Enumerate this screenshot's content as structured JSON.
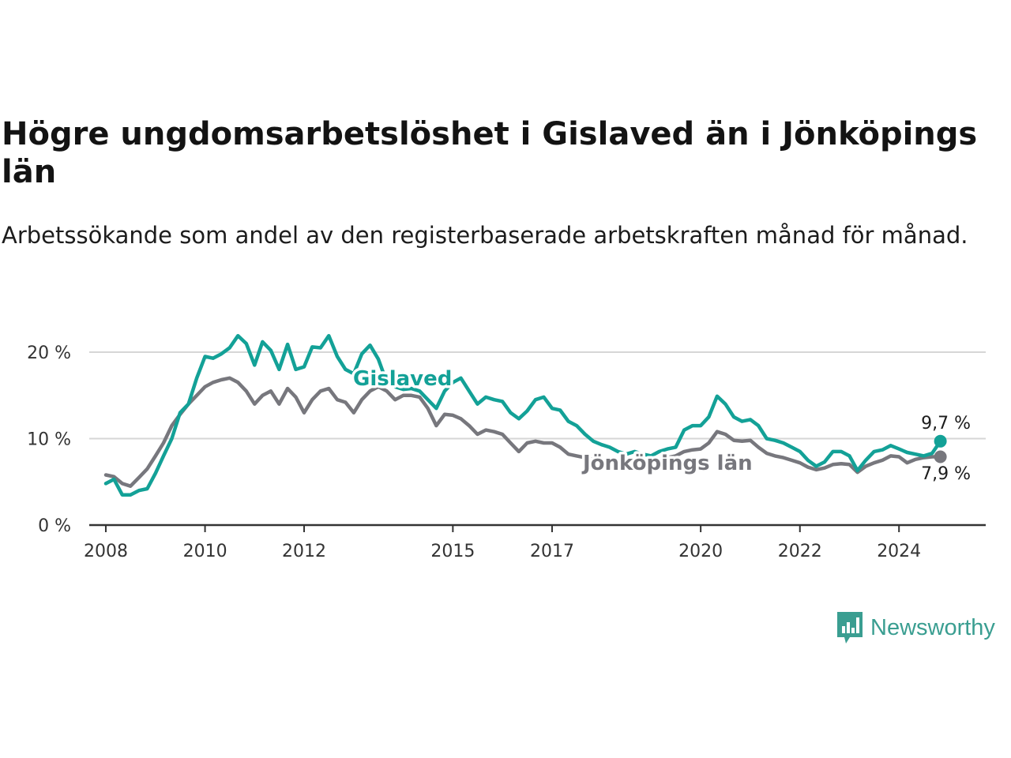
{
  "title": "Högre ungdomsarbetslöshet i Gislaved än i Jönköpings län",
  "subtitle": "Arbetssökande som andel av den registerbaserade arbetskraften månad för månad.",
  "brand": {
    "name": "Newsworthy",
    "color": "#3a9e91"
  },
  "colors": {
    "gislaved": "#13a197",
    "jonkoping": "#77777d",
    "grid": "#d6d6d6",
    "axis": "#333333"
  },
  "chart_data": {
    "type": "line",
    "title": "Högre ungdomsarbetslöshet i Gislaved än i Jönköpings län",
    "subtitle": "Arbetssökande som andel av den registerbaserade arbetskraften månad för månad.",
    "xlabel": "",
    "ylabel": "",
    "ylim": [
      0,
      25
    ],
    "xlim": [
      "2007-09-01",
      "2025-10-01"
    ],
    "yticks": [
      0,
      10,
      20
    ],
    "ytick_labels": [
      "0 %",
      "10 %",
      "20 %"
    ],
    "xticks": [
      "2008",
      "2010",
      "2012",
      "2015",
      "2017",
      "2020",
      "2022",
      "2024"
    ],
    "grid": true,
    "legend": "inline labels",
    "series": [
      {
        "name": "Gislaved",
        "color": "#13a197",
        "label": "Gislaved",
        "end_label": "9,7 %",
        "points": [
          [
            "2008-01",
            4.8
          ],
          [
            "2008-03",
            5.3
          ],
          [
            "2008-05",
            3.5
          ],
          [
            "2008-07",
            3.5
          ],
          [
            "2008-09",
            4.0
          ],
          [
            "2008-11",
            4.2
          ],
          [
            "2009-01",
            6.0
          ],
          [
            "2009-03",
            8.0
          ],
          [
            "2009-05",
            10.0
          ],
          [
            "2009-07",
            13.0
          ],
          [
            "2009-09",
            14.0
          ],
          [
            "2009-11",
            17.0
          ],
          [
            "2010-01",
            19.5
          ],
          [
            "2010-03",
            19.3
          ],
          [
            "2010-05",
            19.8
          ],
          [
            "2010-07",
            20.5
          ],
          [
            "2010-09",
            21.9
          ],
          [
            "2010-11",
            21.0
          ],
          [
            "2011-01",
            18.5
          ],
          [
            "2011-03",
            21.2
          ],
          [
            "2011-05",
            20.2
          ],
          [
            "2011-07",
            18.0
          ],
          [
            "2011-09",
            20.9
          ],
          [
            "2011-11",
            18.0
          ],
          [
            "2012-01",
            18.3
          ],
          [
            "2012-03",
            20.6
          ],
          [
            "2012-05",
            20.5
          ],
          [
            "2012-07",
            21.9
          ],
          [
            "2012-09",
            19.5
          ],
          [
            "2012-11",
            18.0
          ],
          [
            "2013-01",
            17.5
          ],
          [
            "2013-03",
            19.8
          ],
          [
            "2013-05",
            20.8
          ],
          [
            "2013-07",
            19.2
          ],
          [
            "2013-09",
            16.5
          ],
          [
            "2013-11",
            16.0
          ],
          [
            "2014-01",
            15.7
          ],
          [
            "2014-03",
            15.8
          ],
          [
            "2014-05",
            15.5
          ],
          [
            "2014-07",
            14.5
          ],
          [
            "2014-09",
            13.5
          ],
          [
            "2014-11",
            15.5
          ],
          [
            "2015-01",
            16.5
          ],
          [
            "2015-03",
            17.0
          ],
          [
            "2015-05",
            15.5
          ],
          [
            "2015-07",
            14.0
          ],
          [
            "2015-09",
            14.8
          ],
          [
            "2015-11",
            14.5
          ],
          [
            "2016-01",
            14.3
          ],
          [
            "2016-03",
            13.0
          ],
          [
            "2016-05",
            12.3
          ],
          [
            "2016-07",
            13.2
          ],
          [
            "2016-09",
            14.5
          ],
          [
            "2016-11",
            14.8
          ],
          [
            "2017-01",
            13.5
          ],
          [
            "2017-03",
            13.3
          ],
          [
            "2017-05",
            12.0
          ],
          [
            "2017-07",
            11.5
          ],
          [
            "2017-09",
            10.5
          ],
          [
            "2017-11",
            9.7
          ],
          [
            "2018-01",
            9.3
          ],
          [
            "2018-03",
            9.0
          ],
          [
            "2018-05",
            8.5
          ],
          [
            "2018-07",
            8.2
          ],
          [
            "2018-09",
            8.5
          ],
          [
            "2018-11",
            8.2
          ],
          [
            "2019-01",
            8.0
          ],
          [
            "2019-03",
            8.5
          ],
          [
            "2019-05",
            8.8
          ],
          [
            "2019-07",
            9.0
          ],
          [
            "2019-09",
            11.0
          ],
          [
            "2019-11",
            11.5
          ],
          [
            "2020-01",
            11.5
          ],
          [
            "2020-03",
            12.5
          ],
          [
            "2020-05",
            14.9
          ],
          [
            "2020-07",
            14.0
          ],
          [
            "2020-09",
            12.5
          ],
          [
            "2020-11",
            12.0
          ],
          [
            "2021-01",
            12.2
          ],
          [
            "2021-03",
            11.5
          ],
          [
            "2021-05",
            10.0
          ],
          [
            "2021-07",
            9.8
          ],
          [
            "2021-09",
            9.5
          ],
          [
            "2021-11",
            9.0
          ],
          [
            "2022-01",
            8.5
          ],
          [
            "2022-03",
            7.5
          ],
          [
            "2022-05",
            6.8
          ],
          [
            "2022-07",
            7.3
          ],
          [
            "2022-09",
            8.5
          ],
          [
            "2022-11",
            8.5
          ],
          [
            "2023-01",
            8.0
          ],
          [
            "2023-03",
            6.3
          ],
          [
            "2023-05",
            7.5
          ],
          [
            "2023-07",
            8.5
          ],
          [
            "2023-09",
            8.7
          ],
          [
            "2023-11",
            9.2
          ],
          [
            "2024-01",
            8.8
          ],
          [
            "2024-03",
            8.4
          ],
          [
            "2024-05",
            8.2
          ],
          [
            "2024-07",
            8.0
          ],
          [
            "2024-09",
            8.3
          ],
          [
            "2024-11",
            9.7
          ]
        ]
      },
      {
        "name": "Jönköpings län",
        "color": "#77777d",
        "label": "Jönköpings län",
        "end_label": "7,9 %",
        "points": [
          [
            "2008-01",
            5.8
          ],
          [
            "2008-03",
            5.6
          ],
          [
            "2008-05",
            4.8
          ],
          [
            "2008-07",
            4.5
          ],
          [
            "2008-09",
            5.5
          ],
          [
            "2008-11",
            6.5
          ],
          [
            "2009-01",
            8.0
          ],
          [
            "2009-03",
            9.5
          ],
          [
            "2009-05",
            11.5
          ],
          [
            "2009-07",
            12.8
          ],
          [
            "2009-09",
            14.0
          ],
          [
            "2009-11",
            15.0
          ],
          [
            "2010-01",
            16.0
          ],
          [
            "2010-03",
            16.5
          ],
          [
            "2010-05",
            16.8
          ],
          [
            "2010-07",
            17.0
          ],
          [
            "2010-09",
            16.5
          ],
          [
            "2010-11",
            15.5
          ],
          [
            "2011-01",
            14.0
          ],
          [
            "2011-03",
            15.0
          ],
          [
            "2011-05",
            15.5
          ],
          [
            "2011-07",
            14.0
          ],
          [
            "2011-09",
            15.8
          ],
          [
            "2011-11",
            14.8
          ],
          [
            "2012-01",
            13.0
          ],
          [
            "2012-03",
            14.5
          ],
          [
            "2012-05",
            15.5
          ],
          [
            "2012-07",
            15.8
          ],
          [
            "2012-09",
            14.5
          ],
          [
            "2012-11",
            14.2
          ],
          [
            "2013-01",
            13.0
          ],
          [
            "2013-03",
            14.5
          ],
          [
            "2013-05",
            15.5
          ],
          [
            "2013-07",
            16.0
          ],
          [
            "2013-09",
            15.5
          ],
          [
            "2013-11",
            14.5
          ],
          [
            "2014-01",
            15.0
          ],
          [
            "2014-03",
            15.0
          ],
          [
            "2014-05",
            14.8
          ],
          [
            "2014-07",
            13.5
          ],
          [
            "2014-09",
            11.5
          ],
          [
            "2014-11",
            12.8
          ],
          [
            "2015-01",
            12.7
          ],
          [
            "2015-03",
            12.3
          ],
          [
            "2015-05",
            11.5
          ],
          [
            "2015-07",
            10.5
          ],
          [
            "2015-09",
            11.0
          ],
          [
            "2015-11",
            10.8
          ],
          [
            "2016-01",
            10.5
          ],
          [
            "2016-03",
            9.5
          ],
          [
            "2016-05",
            8.5
          ],
          [
            "2016-07",
            9.5
          ],
          [
            "2016-09",
            9.7
          ],
          [
            "2016-11",
            9.5
          ],
          [
            "2017-01",
            9.5
          ],
          [
            "2017-03",
            9.0
          ],
          [
            "2017-05",
            8.2
          ],
          [
            "2017-07",
            8.0
          ],
          [
            "2017-09",
            7.8
          ],
          [
            "2017-11",
            7.6
          ],
          [
            "2018-01",
            7.4
          ],
          [
            "2018-03",
            7.2
          ],
          [
            "2018-05",
            7.1
          ],
          [
            "2018-07",
            7.1
          ],
          [
            "2018-09",
            7.3
          ],
          [
            "2018-11",
            7.3
          ],
          [
            "2019-01",
            7.4
          ],
          [
            "2019-03",
            7.6
          ],
          [
            "2019-05",
            7.8
          ],
          [
            "2019-07",
            8.0
          ],
          [
            "2019-09",
            8.5
          ],
          [
            "2019-11",
            8.7
          ],
          [
            "2020-01",
            8.8
          ],
          [
            "2020-03",
            9.5
          ],
          [
            "2020-05",
            10.8
          ],
          [
            "2020-07",
            10.5
          ],
          [
            "2020-09",
            9.8
          ],
          [
            "2020-11",
            9.7
          ],
          [
            "2021-01",
            9.8
          ],
          [
            "2021-03",
            9.0
          ],
          [
            "2021-05",
            8.3
          ],
          [
            "2021-07",
            8.0
          ],
          [
            "2021-09",
            7.8
          ],
          [
            "2021-11",
            7.5
          ],
          [
            "2022-01",
            7.2
          ],
          [
            "2022-03",
            6.7
          ],
          [
            "2022-05",
            6.4
          ],
          [
            "2022-07",
            6.6
          ],
          [
            "2022-09",
            7.0
          ],
          [
            "2022-11",
            7.1
          ],
          [
            "2023-01",
            7.0
          ],
          [
            "2023-03",
            6.1
          ],
          [
            "2023-05",
            6.8
          ],
          [
            "2023-07",
            7.2
          ],
          [
            "2023-09",
            7.5
          ],
          [
            "2023-11",
            8.0
          ],
          [
            "2024-01",
            7.9
          ],
          [
            "2024-03",
            7.2
          ],
          [
            "2024-05",
            7.6
          ],
          [
            "2024-07",
            7.8
          ],
          [
            "2024-09",
            7.9
          ],
          [
            "2024-11",
            7.9
          ]
        ]
      }
    ]
  }
}
